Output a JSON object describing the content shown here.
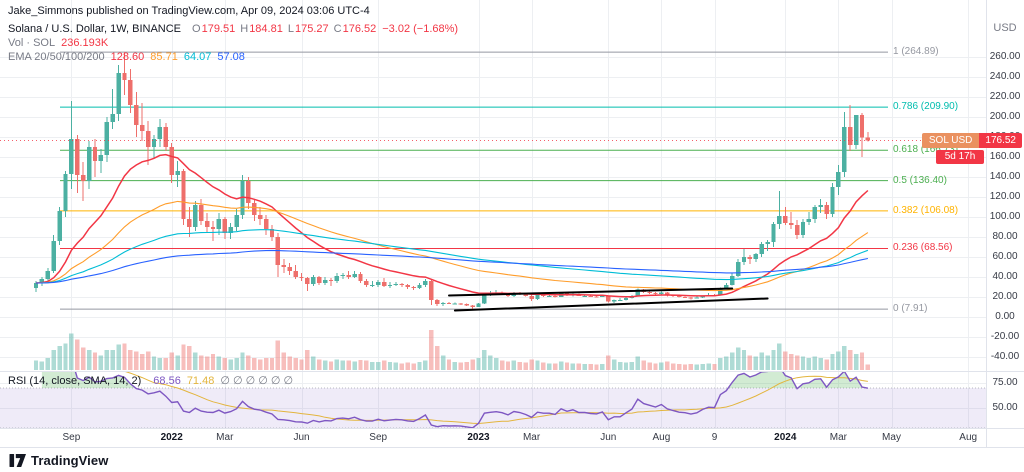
{
  "publish_line": "Jake_Simmons published on TradingView.com, Apr 09, 2024 03:06 UTC-4",
  "legend": {
    "symbol_title": "Solana / U.S. Dollar, 1W, BINANCE",
    "ohlc": [
      {
        "k": "O",
        "v": "179.51"
      },
      {
        "k": "H",
        "v": "184.81"
      },
      {
        "k": "L",
        "v": "175.27"
      },
      {
        "k": "C",
        "v": "176.52"
      }
    ],
    "change": "−3.02 (−1.68%)",
    "ohlc_color": "#f23645",
    "volume": {
      "label": "Vol · SOL",
      "value": "236.193K",
      "value_color": "#f23645"
    },
    "ema": {
      "label": "EMA 20/50/100/200",
      "values": [
        {
          "v": "128.60"
        },
        {
          "v": "85.71"
        },
        {
          "v": "64.07"
        },
        {
          "v": "57.08"
        }
      ]
    }
  },
  "rsi_legend": {
    "title": "RSI (14, close, SMA, 14, 2)",
    "value": "68.56",
    "ma": "71.48",
    "empties": "∅ ∅ ∅ ∅ ∅ ∅"
  },
  "price_scale": {
    "currency": "USD",
    "tick_max": 260,
    "tick_min": -40,
    "tick_step": 20,
    "rsi_ticks": [
      75,
      50
    ]
  },
  "time_scale": {
    "ticks": [
      {
        "label": "Sep",
        "week": 6
      },
      {
        "label": "2022",
        "week": 23,
        "year": true
      },
      {
        "label": "Mar",
        "week": 32
      },
      {
        "label": "Jun",
        "week": 45
      },
      {
        "label": "Sep",
        "week": 58
      },
      {
        "label": "2023",
        "week": 75,
        "year": true
      },
      {
        "label": "Mar",
        "week": 84
      },
      {
        "label": "Jun",
        "week": 97
      },
      {
        "label": "Aug",
        "week": 106
      },
      {
        "label": "9",
        "week": 115
      },
      {
        "label": "2024",
        "week": 127,
        "year": true
      },
      {
        "label": "Mar",
        "week": 136
      },
      {
        "label": "May",
        "week": 145
      },
      {
        "label": "Aug",
        "week": 158
      }
    ]
  },
  "fib_levels": [
    {
      "label": "1 (264.89)",
      "price": 264.89,
      "color": "#9598a1"
    },
    {
      "label": "0.786 (209.90)",
      "price": 209.9,
      "color": "#00bdae"
    },
    {
      "label": "0.618 (166.73)",
      "price": 166.73,
      "color": "#4caf50"
    },
    {
      "label": "0.5 (136.40)",
      "price": 136.4,
      "color": "#4caf50"
    },
    {
      "label": "0.382 (106.08)",
      "price": 106.08,
      "color": "#ffb300"
    },
    {
      "label": "0.236 (68.56)",
      "price": 68.56,
      "color": "#f23645"
    },
    {
      "label": "0 (7.91)",
      "price": 7.91,
      "color": "#9598a1"
    }
  ],
  "trendlines": [
    {
      "from_week": 70,
      "from_price": 21.5,
      "to_week": 118,
      "to_price": 28.5,
      "color": "#000000"
    },
    {
      "from_week": 71,
      "from_price": 6.5,
      "to_week": 124,
      "to_price": 18.5,
      "color": "#000000"
    }
  ],
  "price_badge": {
    "symbol": "SOL USD",
    "value": "176.52",
    "countdown": "5d 17h"
  },
  "footer": {
    "wordmark": "TradingView",
    "logo_icon": "tradingview-logo"
  },
  "colors": {
    "up": "#4cb0a2",
    "down": "#ee6f6b",
    "grid": "#edeff2",
    "separator": "#e0e3eb",
    "axis_text": "#363a45",
    "badge_red": "#f23645",
    "badge_symbol_bg": "#ea9160",
    "price_line": "#f23645",
    "rsi_line": "#7e57c2",
    "rsi_ma": "#e3b53e",
    "rsi_band": "rgba(126,87,194,0.12)",
    "overbought_fill": "rgba(76,175,80,0.25)",
    "oversold_fill": "rgba(242,54,69,0.18)",
    "ema": [
      "#f23645",
      "#ff9d2b",
      "#00bdd6",
      "#2962ff"
    ]
  },
  "chart_data": {
    "type": "candlestick",
    "title": "Solana / U.S. Dollar, 1W, BINANCE",
    "symbol": "SOLUSD",
    "exchange": "BINANCE",
    "interval": "1W",
    "first_bar_date": "2021-07-26",
    "bar_interval_days": 7,
    "y_axis_visible_range": [
      -45,
      285
    ],
    "columns": [
      "open",
      "high",
      "low",
      "close",
      "volume_rel"
    ],
    "candles": [
      [
        29,
        36,
        25,
        34,
        14
      ],
      [
        34,
        40,
        31,
        38,
        13
      ],
      [
        38,
        49,
        36,
        46,
        18
      ],
      [
        46,
        82,
        44,
        76,
        30
      ],
      [
        76,
        110,
        72,
        106,
        36
      ],
      [
        106,
        146,
        100,
        143,
        40
      ],
      [
        143,
        216,
        128,
        178,
        55
      ],
      [
        178,
        182,
        124,
        142,
        46
      ],
      [
        142,
        155,
        116,
        136,
        34
      ],
      [
        136,
        176,
        128,
        170,
        30
      ],
      [
        170,
        178,
        140,
        156,
        26
      ],
      [
        156,
        168,
        144,
        162,
        22
      ],
      [
        162,
        200,
        155,
        195,
        30
      ],
      [
        195,
        228,
        188,
        203,
        30
      ],
      [
        203,
        252,
        196,
        244,
        38
      ],
      [
        244,
        264.89,
        222,
        237,
        40
      ],
      [
        237,
        248,
        204,
        212,
        30
      ],
      [
        212,
        225,
        180,
        192,
        28
      ],
      [
        192,
        214,
        176,
        186,
        24
      ],
      [
        186,
        196,
        152,
        170,
        28
      ],
      [
        170,
        182,
        158,
        178,
        20
      ],
      [
        178,
        198,
        170,
        190,
        18
      ],
      [
        190,
        194,
        166,
        170,
        18
      ],
      [
        170,
        174,
        134,
        142,
        26
      ],
      [
        142,
        156,
        130,
        146,
        22
      ],
      [
        146,
        148,
        92,
        98,
        38
      ],
      [
        98,
        110,
        80,
        90,
        36
      ],
      [
        90,
        116,
        86,
        112,
        26
      ],
      [
        112,
        118,
        92,
        96,
        22
      ],
      [
        96,
        104,
        84,
        90,
        20
      ],
      [
        90,
        96,
        76,
        88,
        24
      ],
      [
        88,
        104,
        82,
        98,
        20
      ],
      [
        98,
        100,
        78,
        84,
        18
      ],
      [
        84,
        94,
        78,
        90,
        16
      ],
      [
        90,
        108,
        86,
        102,
        18
      ],
      [
        102,
        142,
        98,
        136,
        26
      ],
      [
        136,
        140,
        108,
        114,
        22
      ],
      [
        114,
        118,
        96,
        102,
        18
      ],
      [
        102,
        110,
        92,
        98,
        16
      ],
      [
        98,
        102,
        82,
        88,
        18
      ],
      [
        88,
        92,
        76,
        80,
        18
      ],
      [
        80,
        84,
        40,
        52,
        44
      ],
      [
        52,
        58,
        44,
        50,
        26
      ],
      [
        50,
        54,
        42,
        46,
        20
      ],
      [
        46,
        52,
        38,
        40,
        18
      ],
      [
        40,
        44,
        36,
        39,
        16
      ],
      [
        39,
        40,
        26,
        33,
        30
      ],
      [
        33,
        42,
        31,
        40,
        20
      ],
      [
        40,
        41,
        32,
        34,
        16
      ],
      [
        34,
        40,
        32,
        37,
        14
      ],
      [
        37,
        39,
        31,
        36,
        13
      ],
      [
        36,
        44,
        34,
        41,
        16
      ],
      [
        41,
        44,
        38,
        42,
        14
      ],
      [
        42,
        46,
        38,
        40,
        14
      ],
      [
        40,
        46,
        39,
        43,
        13
      ],
      [
        43,
        45,
        34,
        36,
        15
      ],
      [
        36,
        38,
        30,
        32,
        14
      ],
      [
        32,
        36,
        30,
        32,
        12
      ],
      [
        32,
        37,
        30,
        35,
        12
      ],
      [
        35,
        39,
        30,
        31,
        14
      ],
      [
        31,
        35,
        29,
        32,
        12
      ],
      [
        32,
        35,
        31,
        33,
        11
      ],
      [
        33,
        34,
        30,
        32,
        10
      ],
      [
        32,
        33,
        28,
        30,
        11
      ],
      [
        30,
        31,
        27,
        29,
        10
      ],
      [
        29,
        34,
        28,
        32,
        12
      ],
      [
        32,
        38,
        30,
        36,
        14
      ],
      [
        36,
        37,
        12,
        17,
        60
      ],
      [
        17,
        18,
        11,
        13,
        36
      ],
      [
        13,
        15,
        11,
        14,
        22
      ],
      [
        14,
        15,
        13,
        13.5,
        16
      ],
      [
        13.5,
        14.5,
        12.5,
        13.7,
        12
      ],
      [
        13.7,
        14,
        12,
        13,
        11
      ],
      [
        13,
        13.5,
        11,
        11.5,
        12
      ],
      [
        11.5,
        12,
        7.91,
        10,
        16
      ],
      [
        10,
        14,
        9.8,
        13.5,
        18
      ],
      [
        13.5,
        24,
        13,
        23,
        30
      ],
      [
        23,
        26,
        21,
        24,
        22
      ],
      [
        24,
        27,
        22,
        24.5,
        18
      ],
      [
        24.5,
        25.5,
        22.5,
        23.5,
        14
      ],
      [
        23.5,
        24,
        20,
        21,
        13
      ],
      [
        21,
        25,
        20,
        24,
        14
      ],
      [
        24,
        25,
        22,
        23,
        12
      ],
      [
        23,
        24,
        20.5,
        21,
        11
      ],
      [
        21,
        22,
        16,
        18,
        16
      ],
      [
        18,
        23,
        17,
        22,
        14
      ],
      [
        22,
        23,
        20,
        21,
        11
      ],
      [
        21,
        22,
        20,
        21,
        10
      ],
      [
        21,
        21.5,
        19.5,
        20,
        10
      ],
      [
        20,
        25,
        19.8,
        24,
        13
      ],
      [
        24,
        24.5,
        21,
        22,
        11
      ],
      [
        22,
        23.5,
        20.5,
        23,
        10
      ],
      [
        23,
        23.5,
        20.8,
        21,
        10
      ],
      [
        21,
        22,
        20,
        21,
        9
      ],
      [
        21,
        21.5,
        19.8,
        20.3,
        9
      ],
      [
        20.3,
        21,
        19.5,
        20,
        8
      ],
      [
        20,
        21.5,
        19.8,
        21,
        9
      ],
      [
        21,
        21.5,
        14.5,
        15.5,
        22
      ],
      [
        15.5,
        17.5,
        13.8,
        17,
        16
      ],
      [
        17,
        19,
        16,
        17,
        12
      ],
      [
        17,
        19.5,
        16.5,
        19,
        11
      ],
      [
        19,
        22,
        18.5,
        21,
        12
      ],
      [
        21,
        28.5,
        20.5,
        27.5,
        20
      ],
      [
        27.5,
        28,
        24,
        25,
        14
      ],
      [
        25,
        26,
        23,
        24,
        11
      ],
      [
        24,
        25,
        22.5,
        23,
        10
      ],
      [
        23,
        25.5,
        22.5,
        24.5,
        11
      ],
      [
        24.5,
        25,
        20.5,
        22,
        13
      ],
      [
        22,
        22.5,
        20,
        21,
        10
      ],
      [
        21,
        22,
        19.5,
        20,
        9
      ],
      [
        20,
        20.5,
        19,
        19.7,
        8
      ],
      [
        19.7,
        20,
        17.5,
        19,
        9
      ],
      [
        19,
        20.5,
        18.8,
        19.5,
        8
      ],
      [
        19.5,
        21.5,
        19,
        21,
        9
      ],
      [
        21,
        24,
        20.5,
        22,
        10
      ],
      [
        22,
        23,
        20.8,
        21.8,
        9
      ],
      [
        21.8,
        29.5,
        21.5,
        29,
        18
      ],
      [
        29,
        34,
        27.5,
        32,
        20
      ],
      [
        32,
        44,
        31.5,
        41,
        26
      ],
      [
        41,
        58,
        40,
        55,
        34
      ],
      [
        55,
        68,
        52,
        60,
        30
      ],
      [
        60,
        62,
        53,
        58,
        22
      ],
      [
        58,
        64,
        55,
        63,
        20
      ],
      [
        63,
        75,
        60,
        73,
        26
      ],
      [
        73,
        77,
        66,
        75,
        22
      ],
      [
        75,
        95,
        70,
        93,
        30
      ],
      [
        93,
        126,
        88,
        101,
        40
      ],
      [
        101,
        110,
        92,
        94,
        28
      ],
      [
        94,
        105,
        88,
        92,
        24
      ],
      [
        92,
        97,
        78,
        82,
        22
      ],
      [
        82,
        98,
        79,
        95,
        20
      ],
      [
        95,
        105,
        92,
        98,
        18
      ],
      [
        98,
        112,
        94,
        110,
        20
      ],
      [
        110,
        118,
        104,
        112,
        18
      ],
      [
        112,
        115,
        98,
        103,
        16
      ],
      [
        103,
        134,
        100,
        130,
        24
      ],
      [
        130,
        152,
        122,
        145,
        28
      ],
      [
        145,
        205,
        140,
        190,
        36
      ],
      [
        190,
        212,
        166,
        172,
        30
      ],
      [
        172,
        202,
        168,
        202,
        24
      ],
      [
        202,
        204,
        160,
        179.5,
        26
      ],
      [
        179.51,
        184.81,
        175.27,
        176.52,
        8
      ]
    ],
    "overlays": {
      "emas": [
        20,
        50,
        100,
        200
      ],
      "fib_retracement": {
        "high": 264.89,
        "low": 7.91
      }
    },
    "indicator": {
      "name": "RSI",
      "length": 14,
      "ma": "SMA 14"
    }
  }
}
